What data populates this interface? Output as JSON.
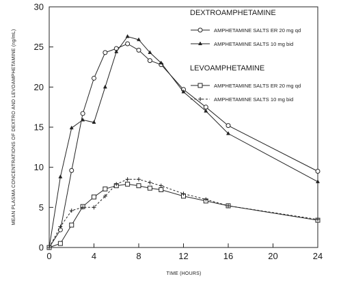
{
  "chart_data": {
    "type": "line",
    "xlabel": "TIME (HOURS)",
    "ylabel": "MEAN PLASMA CONCENTRATIONS OF DEXTRO AND LEVOAMPHETAMINE (ng/mL)",
    "xlim": [
      0,
      24
    ],
    "ylim": [
      0,
      30
    ],
    "xticks": [
      0,
      4,
      8,
      12,
      16,
      20,
      24
    ],
    "yticks": [
      0,
      5,
      10,
      15,
      20,
      25,
      30
    ],
    "grid": false,
    "legend_position": "top-right",
    "legend_groups": [
      {
        "title": "DEXTROAMPHETAMINE",
        "series": [
          0,
          1
        ]
      },
      {
        "title": "LEVOAMPHETAMINE",
        "series": [
          2,
          3
        ]
      }
    ],
    "series": [
      {
        "name": "AMPHETAMINE SALTS ER 20 mg qd",
        "group": "DEXTROAMPHETAMINE",
        "marker": "circle",
        "line": "solid",
        "x": [
          0,
          1,
          2,
          3,
          4,
          5,
          6,
          7,
          8,
          9,
          10,
          12,
          14,
          16,
          24
        ],
        "y": [
          0,
          2.2,
          9.6,
          16.7,
          21.1,
          24.3,
          24.8,
          25.4,
          24.6,
          23.3,
          22.8,
          19.7,
          17.5,
          15.2,
          9.5
        ]
      },
      {
        "name": "AMPHETAMINE SALTS 10 mg bid",
        "group": "DEXTROAMPHETAMINE",
        "marker": "triangle",
        "line": "solid",
        "x": [
          0,
          1,
          2,
          3,
          4,
          5,
          6,
          7,
          8,
          9,
          10,
          12,
          14,
          16,
          24
        ],
        "y": [
          0,
          8.8,
          14.9,
          15.9,
          15.6,
          20.0,
          24.4,
          26.3,
          25.9,
          24.3,
          23.0,
          19.4,
          17.0,
          14.2,
          8.2
        ]
      },
      {
        "name": "AMPHETAMINE SALTS ER 20 mg qd",
        "group": "LEVOAMPHETAMINE",
        "marker": "square",
        "line": "solid",
        "x": [
          0,
          1,
          2,
          3,
          4,
          5,
          6,
          7,
          8,
          9,
          10,
          12,
          14,
          16,
          24
        ],
        "y": [
          0,
          0.5,
          2.8,
          5.1,
          6.3,
          7.3,
          7.7,
          7.9,
          7.7,
          7.4,
          7.2,
          6.4,
          5.8,
          5.2,
          3.4
        ]
      },
      {
        "name": "AMPHETAMINE SALTS 10 mg bid",
        "group": "LEVOAMPHETAMINE",
        "marker": "cross",
        "line": "dashed",
        "x": [
          0,
          1,
          2,
          3,
          4,
          5,
          6,
          7,
          8,
          9,
          10,
          12,
          14,
          16,
          24
        ],
        "y": [
          0,
          2.6,
          4.6,
          5.0,
          5.0,
          6.4,
          7.9,
          8.5,
          8.5,
          8.1,
          7.7,
          6.7,
          6.0,
          5.2,
          3.5
        ]
      }
    ]
  }
}
